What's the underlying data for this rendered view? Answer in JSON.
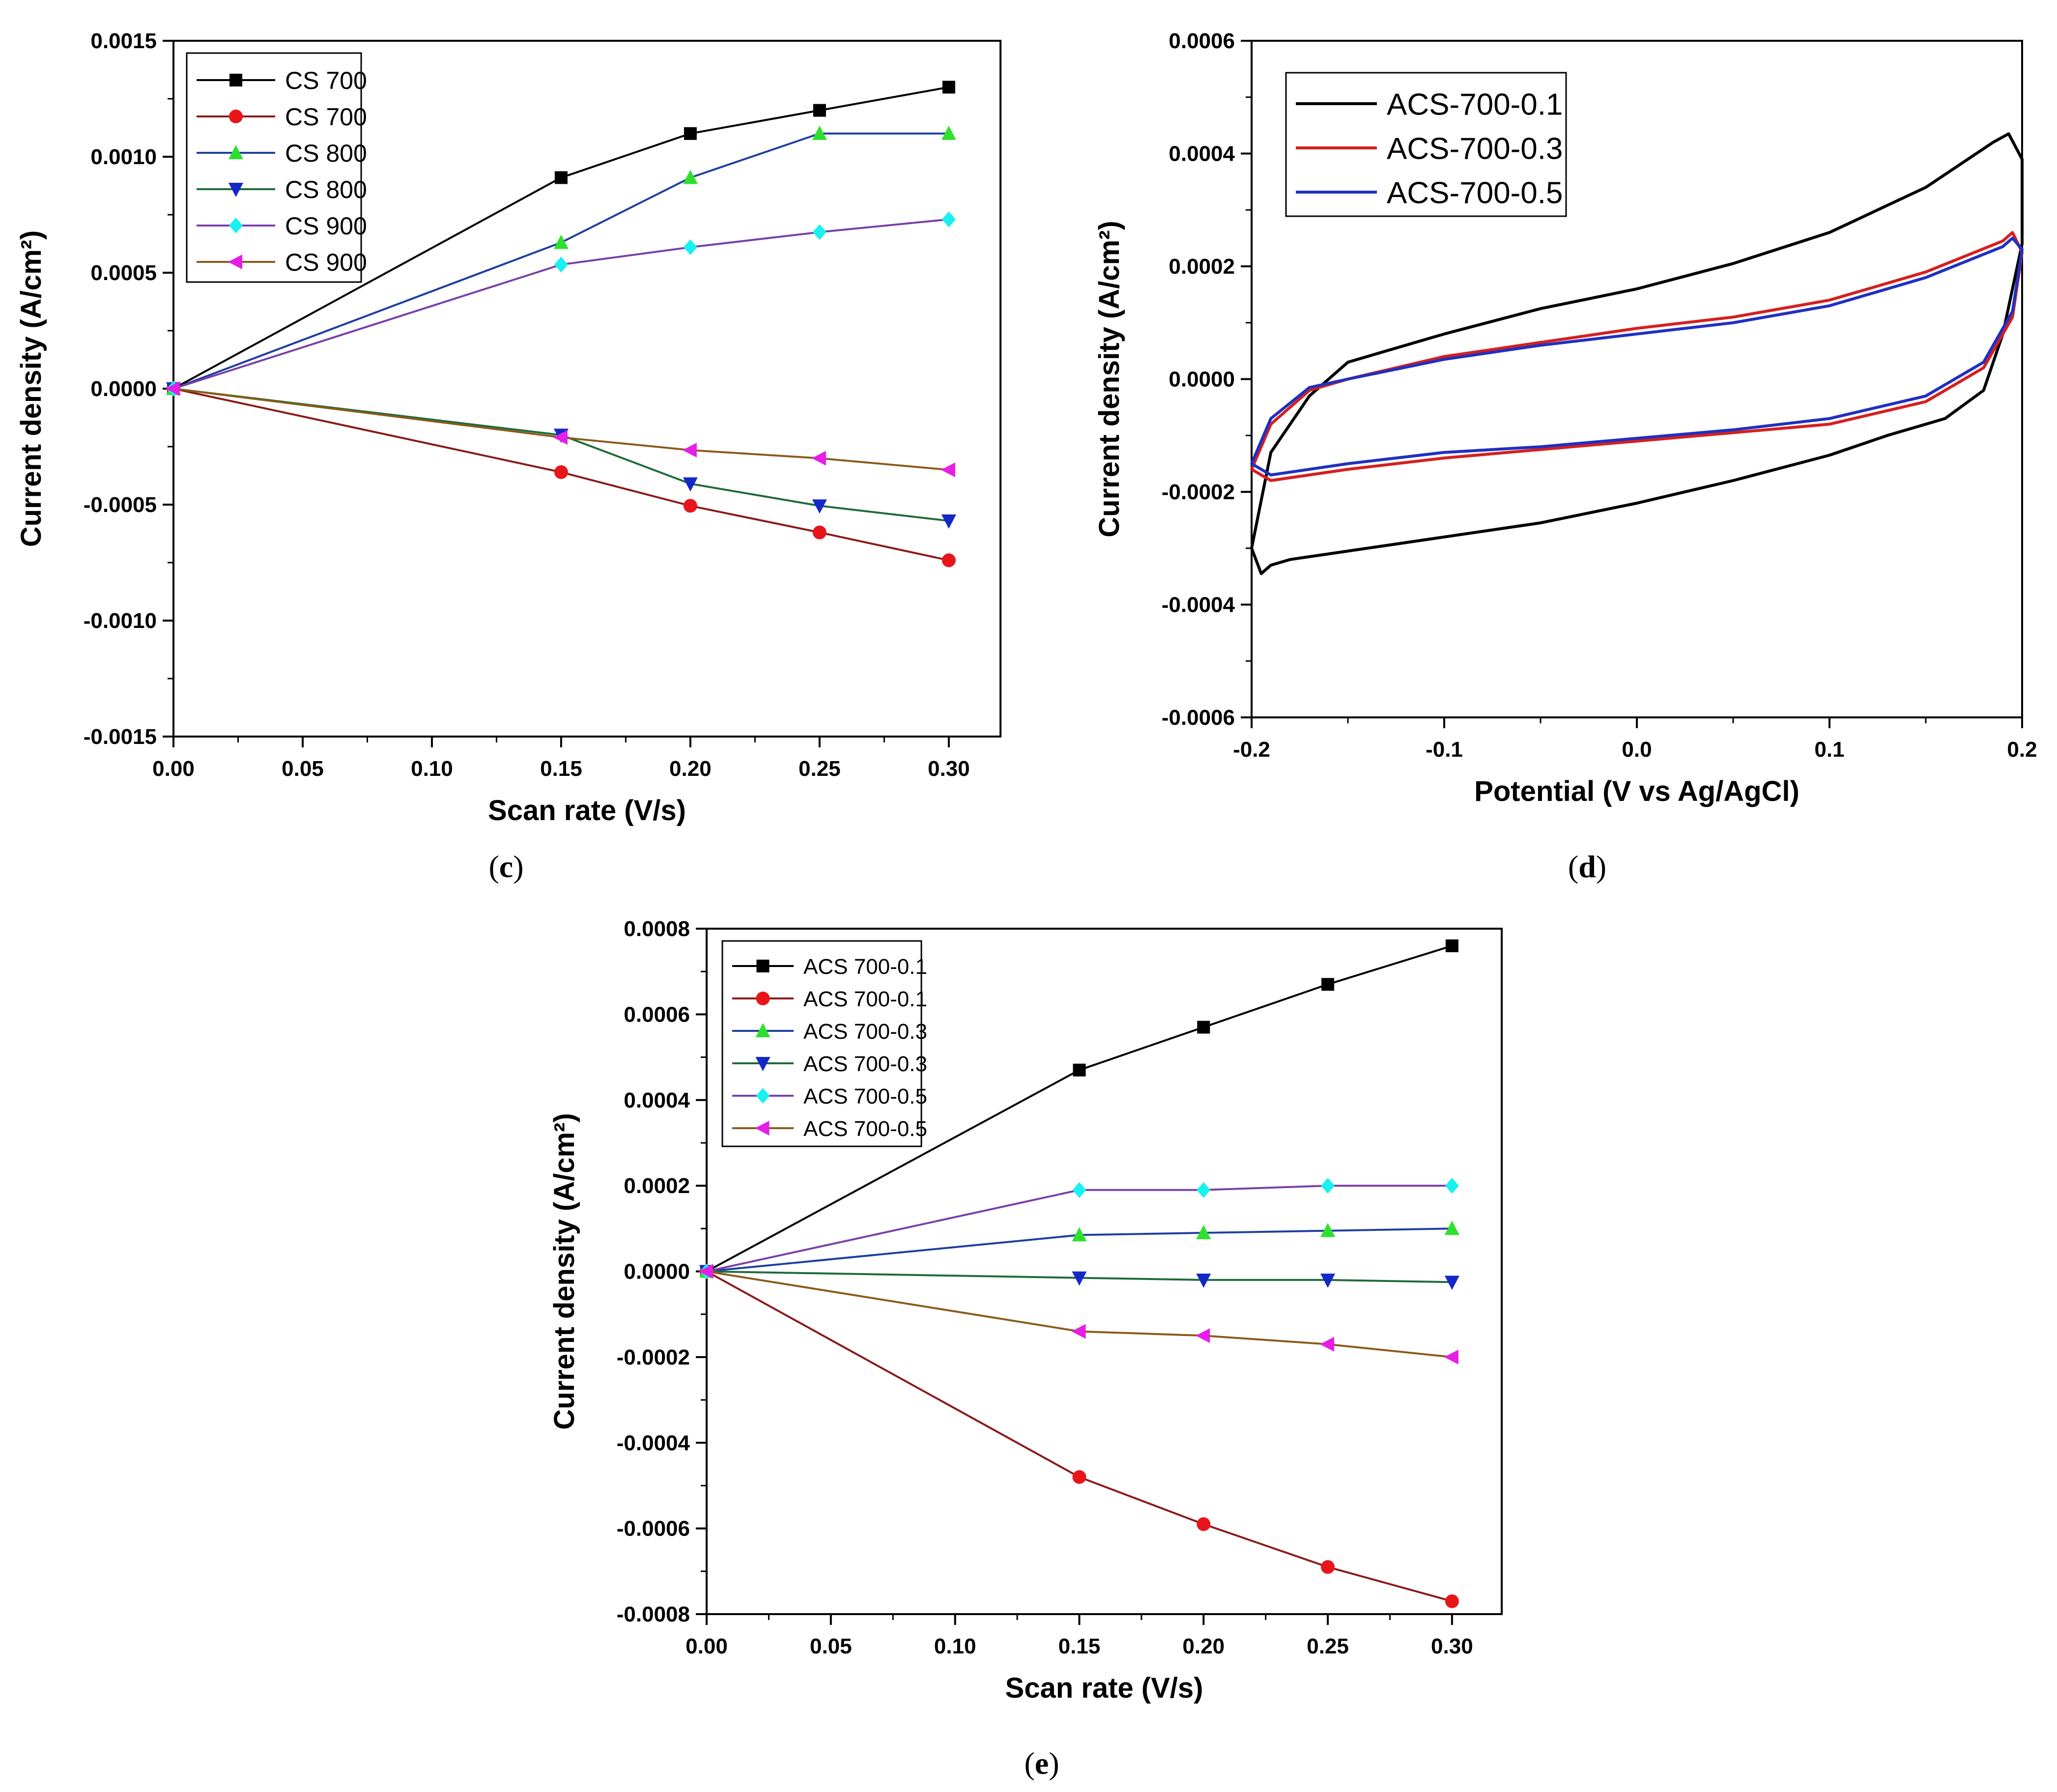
{
  "chart_data": [
    {
      "id": "c",
      "panel_label": "c",
      "type": "line",
      "xlabel": "Scan rate (V/s)",
      "ylabel": "Current density (A/cm²)",
      "xlim": [
        0.0,
        0.32
      ],
      "ylim": [
        -0.0015,
        0.0015
      ],
      "xticks": [
        0.0,
        0.05,
        0.1,
        0.15,
        0.2,
        0.25,
        0.3
      ],
      "xtick_labels": [
        "0.00",
        "0.05",
        "0.10",
        "0.15",
        "0.20",
        "0.25",
        "0.30"
      ],
      "yticks": [
        -0.0015,
        -0.001,
        -0.0005,
        0.0,
        0.0005,
        0.001,
        0.0015
      ],
      "ytick_labels": [
        "-0.0015",
        "-0.0010",
        "-0.0005",
        "0.0000",
        "0.0005",
        "0.0010",
        "0.0015"
      ],
      "legend_position": "top-left",
      "series": [
        {
          "name": "CS 700",
          "color": "#000000",
          "marker": "square",
          "x": [
            0,
            0.15,
            0.2,
            0.25,
            0.3
          ],
          "values": [
            0,
            0.00091,
            0.0011,
            0.0012,
            0.0013
          ]
        },
        {
          "name": "CS 700",
          "color": "#e8161b",
          "line_color": "#8b1a1a",
          "marker": "circle",
          "x": [
            0,
            0.15,
            0.2,
            0.25,
            0.3
          ],
          "values": [
            0,
            -0.00036,
            -0.000505,
            -0.00062,
            -0.00074
          ]
        },
        {
          "name": "CS 800",
          "color": "#2ee02e",
          "line_color": "#1e3fa0",
          "marker": "triangle-up",
          "x": [
            0,
            0.15,
            0.2,
            0.25,
            0.3
          ],
          "values": [
            0,
            0.00063,
            0.00091,
            0.0011,
            0.0011
          ]
        },
        {
          "name": "CS 800",
          "color": "#1428c8",
          "line_color": "#1e6b3a",
          "marker": "triangle-down",
          "x": [
            0,
            0.15,
            0.2,
            0.25,
            0.3
          ],
          "values": [
            0,
            -0.0002,
            -0.00041,
            -0.000505,
            -0.00057
          ]
        },
        {
          "name": "CS 900",
          "color": "#19f0f0",
          "line_color": "#7a3fa8",
          "marker": "diamond",
          "x": [
            0,
            0.15,
            0.2,
            0.25,
            0.3
          ],
          "values": [
            0,
            0.000535,
            0.00061,
            0.000675,
            0.00073
          ]
        },
        {
          "name": "CS 900",
          "color": "#e61ee6",
          "line_color": "#8b5a1a",
          "marker": "triangle-left",
          "x": [
            0,
            0.15,
            0.2,
            0.25,
            0.3
          ],
          "values": [
            0,
            -0.00021,
            -0.000265,
            -0.0003,
            -0.00035
          ]
        }
      ]
    },
    {
      "id": "d",
      "panel_label": "d",
      "type": "line",
      "xlabel": "Potential (V vs Ag/AgCl)",
      "ylabel": "Current density (A/cm²)",
      "xlim": [
        -0.2,
        0.2
      ],
      "ylim": [
        -0.0006,
        0.0006
      ],
      "xticks": [
        -0.2,
        -0.1,
        0.0,
        0.1,
        0.2
      ],
      "xtick_labels": [
        "-0.2",
        "-0.1",
        "0.0",
        "0.1",
        "0.2"
      ],
      "yticks": [
        -0.0006,
        -0.0004,
        -0.0002,
        0.0,
        0.0002,
        0.0004,
        0.0006
      ],
      "ytick_labels": [
        "-0.0006",
        "-0.0004",
        "-0.0002",
        "0.0000",
        "0.0002",
        "0.0004",
        "0.0006"
      ],
      "legend_position": "top-left",
      "series": [
        {
          "name": "ACS-700-0.1",
          "color": "#000000",
          "x": [
            -0.2,
            -0.19,
            -0.17,
            -0.15,
            -0.1,
            -0.05,
            0.0,
            0.05,
            0.1,
            0.15,
            0.185,
            0.193,
            0.2,
            0.2,
            0.19,
            0.18,
            0.16,
            0.13,
            0.1,
            0.05,
            0.0,
            -0.05,
            -0.1,
            -0.15,
            -0.18,
            -0.19,
            -0.195,
            -0.2
          ],
          "values": [
            -0.0003,
            -0.00013,
            -3e-05,
            3e-05,
            8e-05,
            0.000125,
            0.00016,
            0.000205,
            0.00026,
            0.00034,
            0.00042,
            0.000435,
            0.00039,
            0.00024,
            8e-05,
            -2e-05,
            -7e-05,
            -0.0001,
            -0.000135,
            -0.00018,
            -0.00022,
            -0.000255,
            -0.00028,
            -0.000305,
            -0.00032,
            -0.00033,
            -0.000345,
            -0.0003
          ]
        },
        {
          "name": "ACS-700-0.3",
          "color": "#d42020",
          "x": [
            -0.2,
            -0.19,
            -0.17,
            -0.15,
            -0.1,
            -0.05,
            0.0,
            0.05,
            0.1,
            0.15,
            0.19,
            0.195,
            0.2,
            0.195,
            0.18,
            0.15,
            0.1,
            0.05,
            0.0,
            -0.05,
            -0.1,
            -0.15,
            -0.19,
            -0.2
          ],
          "values": [
            -0.00016,
            -8e-05,
            -2e-05,
            0.0,
            4e-05,
            6.5e-05,
            9e-05,
            0.00011,
            0.00014,
            0.00019,
            0.000245,
            0.00026,
            0.000225,
            0.00011,
            2e-05,
            -4e-05,
            -8e-05,
            -9.5e-05,
            -0.00011,
            -0.000125,
            -0.00014,
            -0.00016,
            -0.00018,
            -0.00016
          ]
        },
        {
          "name": "ACS-700-0.5",
          "color": "#2030c0",
          "x": [
            -0.2,
            -0.19,
            -0.17,
            -0.15,
            -0.1,
            -0.05,
            0.0,
            0.05,
            0.1,
            0.15,
            0.19,
            0.195,
            0.2,
            0.195,
            0.18,
            0.15,
            0.1,
            0.05,
            0.0,
            -0.05,
            -0.1,
            -0.15,
            -0.19,
            -0.2
          ],
          "values": [
            -0.00015,
            -7e-05,
            -1.5e-05,
            0.0,
            3.5e-05,
            6e-05,
            8e-05,
            0.0001,
            0.00013,
            0.00018,
            0.000235,
            0.00025,
            0.00023,
            0.00012,
            3e-05,
            -3e-05,
            -7e-05,
            -9e-05,
            -0.000105,
            -0.00012,
            -0.00013,
            -0.00015,
            -0.00017,
            -0.00015
          ]
        }
      ]
    },
    {
      "id": "e",
      "panel_label": "e",
      "type": "line",
      "xlabel": "Scan rate (V/s)",
      "ylabel": "Current density (A/cm²)",
      "xlim": [
        0.0,
        0.32
      ],
      "ylim": [
        -0.0008,
        0.0008
      ],
      "xticks": [
        0.0,
        0.05,
        0.1,
        0.15,
        0.2,
        0.25,
        0.3
      ],
      "xtick_labels": [
        "0.00",
        "0.05",
        "0.10",
        "0.15",
        "0.20",
        "0.25",
        "0.30"
      ],
      "yticks": [
        -0.0008,
        -0.0006,
        -0.0004,
        -0.0002,
        0.0,
        0.0002,
        0.0004,
        0.0006,
        0.0008
      ],
      "ytick_labels": [
        "-0.0008",
        "-0.0006",
        "-0.0004",
        "-0.0002",
        "0.0000",
        "0.0002",
        "0.0004",
        "0.0006",
        "0.0008"
      ],
      "legend_position": "top-left",
      "series": [
        {
          "name": "ACS 700-0.1",
          "color": "#000000",
          "marker": "square",
          "x": [
            0,
            0.15,
            0.2,
            0.25,
            0.3
          ],
          "values": [
            0,
            0.00047,
            0.00057,
            0.00067,
            0.00076
          ]
        },
        {
          "name": "ACS 700-0.1",
          "color": "#e8161b",
          "line_color": "#8b1a1a",
          "marker": "circle",
          "x": [
            0,
            0.15,
            0.2,
            0.25,
            0.3
          ],
          "values": [
            0,
            -0.00048,
            -0.00059,
            -0.00069,
            -0.00077
          ]
        },
        {
          "name": "ACS 700-0.3",
          "color": "#2ee02e",
          "line_color": "#1e3fa0",
          "marker": "triangle-up",
          "x": [
            0,
            0.15,
            0.2,
            0.25,
            0.3
          ],
          "values": [
            0,
            8.5e-05,
            9e-05,
            9.5e-05,
            0.0001
          ]
        },
        {
          "name": "ACS 700-0.3",
          "color": "#1428c8",
          "line_color": "#1e6b3a",
          "marker": "triangle-down",
          "x": [
            0,
            0.15,
            0.2,
            0.25,
            0.3
          ],
          "values": [
            0,
            -1.5e-05,
            -2e-05,
            -2e-05,
            -2.5e-05
          ]
        },
        {
          "name": "ACS 700-0.5",
          "color": "#19f0f0",
          "line_color": "#7a3fa8",
          "marker": "diamond",
          "x": [
            0,
            0.15,
            0.2,
            0.25,
            0.3
          ],
          "values": [
            0,
            0.00019,
            0.00019,
            0.0002,
            0.0002
          ]
        },
        {
          "name": "ACS 700-0.5",
          "color": "#e61ee6",
          "line_color": "#8b5a1a",
          "marker": "triangle-left",
          "x": [
            0,
            0.15,
            0.2,
            0.25,
            0.3
          ],
          "values": [
            0,
            -0.00014,
            -0.00015,
            -0.00017,
            -0.0002
          ]
        }
      ]
    }
  ]
}
